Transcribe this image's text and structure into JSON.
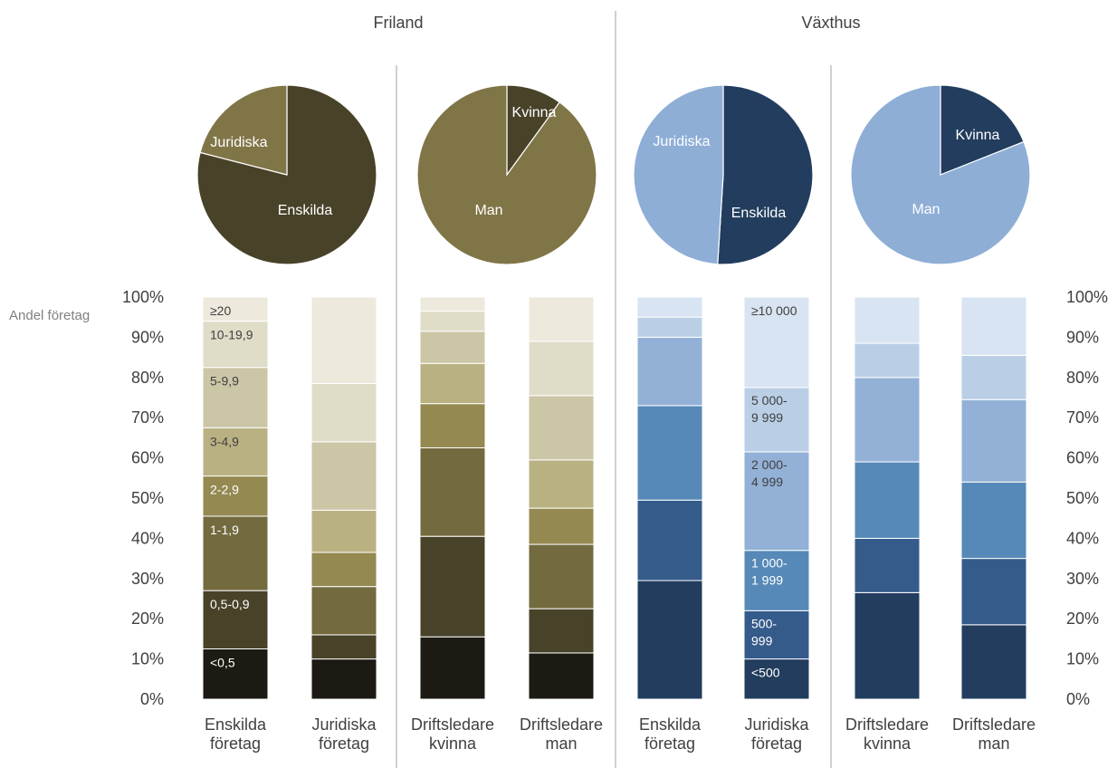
{
  "colors": {
    "friland": [
      "#1c1a12",
      "#484229",
      "#736a3f",
      "#948951",
      "#bab183",
      "#cbc6a6",
      "#dfdcc8",
      "#ede9dc"
    ],
    "vaxthus": [
      "#223d5e",
      "#355b8b",
      "#5689b8",
      "#93b1d6",
      "#bacfe6",
      "#d8e4f1"
    ],
    "pie_friland": [
      "#484229",
      "#807547"
    ],
    "pie_vaxthus": [
      "#223d5e",
      "#8eaed6"
    ],
    "divider": "#a0a0a0",
    "segment_border": "#ffffff"
  },
  "groups": [
    "Friland",
    "Växthus"
  ],
  "y_axis": {
    "ticks": [
      "0%",
      "10%",
      "20%",
      "30%",
      "40%",
      "50%",
      "60%",
      "70%",
      "80%",
      "90%",
      "100%"
    ],
    "label": "Andel företag"
  },
  "chart_data": [
    {
      "type": "bar",
      "stacked": true,
      "group": "Friland",
      "ylim": [
        0,
        100
      ],
      "categories": [
        "Enskilda företag",
        "Juridiska företag",
        "Driftsledare kvinna",
        "Driftsledare man"
      ],
      "series": [
        {
          "name": "<0,5",
          "values": [
            12.5,
            10,
            15.5,
            11.5
          ]
        },
        {
          "name": "0,5-0,9",
          "values": [
            14.5,
            6,
            25,
            11
          ]
        },
        {
          "name": "1-1,9",
          "values": [
            18.5,
            12,
            22,
            16
          ]
        },
        {
          "name": "2-2,9",
          "values": [
            10,
            8.5,
            11,
            9
          ]
        },
        {
          "name": "3-4,9",
          "values": [
            12,
            10.5,
            10,
            12
          ]
        },
        {
          "name": "5-9,9",
          "values": [
            15,
            17,
            8,
            16
          ]
        },
        {
          "name": "10-19,9",
          "values": [
            11.5,
            14.5,
            5,
            13.5
          ]
        },
        {
          "name": "≥20",
          "values": [
            6,
            21.5,
            3.5,
            11
          ]
        }
      ]
    },
    {
      "type": "bar",
      "stacked": true,
      "group": "Växthus",
      "ylim": [
        0,
        100
      ],
      "categories": [
        "Enskilda företag",
        "Juridiska företag",
        "Driftsledare kvinna",
        "Driftsledare man"
      ],
      "series": [
        {
          "name": "<500",
          "values": [
            29.5,
            10,
            26.5,
            18.5
          ]
        },
        {
          "name": "500-999",
          "values": [
            20,
            12,
            13.5,
            16.5
          ]
        },
        {
          "name": "1 000-1 999",
          "values": [
            23.5,
            15,
            19,
            19
          ]
        },
        {
          "name": "2 000-4 999",
          "values": [
            17,
            24.5,
            21,
            20.5
          ]
        },
        {
          "name": "5 000-9 999",
          "values": [
            5,
            16,
            8.5,
            11
          ]
        },
        {
          "name": "≥10 000",
          "values": [
            5,
            22.5,
            11.5,
            14.5
          ]
        }
      ]
    },
    {
      "type": "pie",
      "group": "Friland",
      "slices": [
        {
          "label": "Enskilda",
          "value": 79,
          "color": "#484229"
        },
        {
          "label": "Juridiska",
          "value": 21,
          "color": "#807547"
        }
      ]
    },
    {
      "type": "pie",
      "group": "Friland",
      "slices": [
        {
          "label": "Kvinna",
          "value": 10,
          "color": "#484229"
        },
        {
          "label": "Man",
          "value": 90,
          "color": "#807547"
        }
      ]
    },
    {
      "type": "pie",
      "group": "Växthus",
      "slices": [
        {
          "label": "Enskilda",
          "value": 51,
          "color": "#223d5e"
        },
        {
          "label": "Juridiska",
          "value": 49,
          "color": "#8eaed6"
        }
      ]
    },
    {
      "type": "pie",
      "group": "Växthus",
      "slices": [
        {
          "label": "Kvinna",
          "value": 19,
          "color": "#223d5e"
        },
        {
          "label": "Man",
          "value": 81,
          "color": "#8eaed6"
        }
      ]
    }
  ],
  "category_labels": [
    [
      "Enskilda",
      "företag"
    ],
    [
      "Juridiska",
      "företag"
    ],
    [
      "Driftsledare",
      "kvinna"
    ],
    [
      "Driftsledare",
      "man"
    ],
    [
      "Enskilda",
      "företag"
    ],
    [
      "Juridiska",
      "företag"
    ],
    [
      "Driftsledare",
      "kvinna"
    ],
    [
      "Driftsledare",
      "man"
    ]
  ],
  "segment_labels": {
    "friland_enskilda": [
      "<0,5",
      "0,5-0,9",
      "1-1,9",
      "2-2,9",
      "3-4,9",
      "5-9,9",
      "10-19,9",
      "≥20"
    ],
    "vaxthus_juridiska": [
      "<500",
      "500-\n999",
      "1 000-\n1 999",
      "2 000-\n4 999",
      "5 000-\n9 999",
      "≥10 000"
    ]
  }
}
